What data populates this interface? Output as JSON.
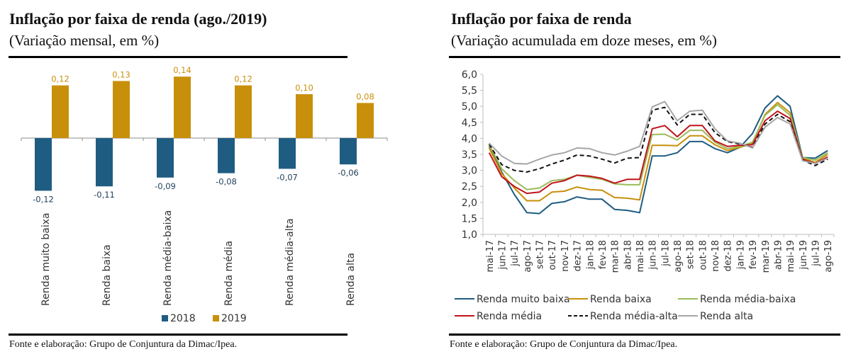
{
  "chart_data": [
    {
      "type": "bar",
      "title": "Inflação por faixa de renda (ago./2019)",
      "subtitle": "(Variação mensal, em %)",
      "xlabel": "",
      "ylabel": "",
      "categories": [
        "Renda muito baixa",
        "Renda baixa",
        "Renda média-baixa",
        "Renda média",
        "Renda média-alta",
        "Renda alta"
      ],
      "series": [
        {
          "name": "2018",
          "color": "#1f5c82",
          "values": [
            -0.12,
            -0.11,
            -0.09,
            -0.08,
            -0.07,
            -0.06
          ],
          "labels": [
            "-0,12",
            "-0,11",
            "-0,09",
            "-0,08",
            "-0,07",
            "-0,06"
          ]
        },
        {
          "name": "2019",
          "color": "#c8900a",
          "values": [
            0.12,
            0.13,
            0.14,
            0.12,
            0.1,
            0.08
          ],
          "labels": [
            "0,12",
            "0,13",
            "0,14",
            "0,12",
            "0,10",
            "0,08"
          ]
        }
      ],
      "ylim": [
        -0.2,
        0.2
      ],
      "grid": false,
      "legend": "bottom",
      "source": "Fonte e elaboração: Grupo de Conjuntura da Dimac/Ipea."
    },
    {
      "type": "line",
      "title": "Inflação por faixa de renda",
      "subtitle": "(Variação acumulada em doze meses, em %)",
      "xlabel": "",
      "ylabel": "",
      "x": [
        "mai-17",
        "jun-17",
        "jul-17",
        "ago-17",
        "set-17",
        "out-17",
        "nov-17",
        "dez-17",
        "jan-18",
        "fev-18",
        "mar-18",
        "abr-18",
        "mai-18",
        "jun-18",
        "jul-18",
        "ago-18",
        "set-18",
        "out-18",
        "nov-18",
        "dez-18",
        "jan-19",
        "fev-19",
        "mar-19",
        "abr-19",
        "mai-19",
        "jun-19",
        "jul-19",
        "ago-19"
      ],
      "ylim": [
        1.0,
        6.0
      ],
      "yticks": [
        "1,0",
        "1,5",
        "2,0",
        "2,5",
        "3,0",
        "3,5",
        "4,0",
        "4,5",
        "5,0",
        "5,5",
        "6,0"
      ],
      "grid": false,
      "legend": "bottom",
      "series": [
        {
          "name": "Renda muito baixa",
          "color": "#1f5c82",
          "dash": false,
          "values": [
            3.75,
            2.95,
            2.25,
            1.68,
            1.65,
            1.97,
            2.02,
            2.17,
            2.1,
            2.1,
            1.78,
            1.75,
            1.68,
            3.45,
            3.45,
            3.55,
            3.9,
            3.9,
            3.68,
            3.55,
            3.72,
            4.15,
            4.95,
            5.33,
            5.0,
            3.4,
            3.38,
            3.62
          ]
        },
        {
          "name": "Renda baixa",
          "color": "#c8900a",
          "dash": false,
          "values": [
            3.7,
            2.9,
            2.45,
            2.05,
            2.05,
            2.32,
            2.35,
            2.48,
            2.4,
            2.38,
            2.15,
            2.13,
            2.08,
            3.78,
            3.78,
            3.77,
            4.08,
            4.08,
            3.8,
            3.62,
            3.72,
            3.85,
            4.75,
            5.12,
            4.8,
            3.38,
            3.25,
            3.5
          ]
        },
        {
          "name": "Renda média-baixa",
          "color": "#9bbb59",
          "dash": false,
          "values": [
            3.8,
            3.05,
            2.68,
            2.4,
            2.45,
            2.68,
            2.72,
            2.85,
            2.78,
            2.72,
            2.58,
            2.55,
            2.55,
            4.12,
            4.13,
            3.95,
            4.25,
            4.25,
            3.88,
            3.68,
            3.75,
            3.88,
            4.72,
            5.05,
            4.72,
            3.4,
            3.32,
            3.55
          ]
        },
        {
          "name": "Renda média",
          "color": "#c0141c",
          "dash": false,
          "values": [
            3.55,
            2.8,
            2.5,
            2.28,
            2.32,
            2.6,
            2.68,
            2.85,
            2.82,
            2.75,
            2.6,
            2.72,
            2.72,
            4.3,
            4.4,
            4.05,
            4.4,
            4.4,
            3.92,
            3.75,
            3.78,
            3.8,
            4.55,
            4.85,
            4.62,
            3.35,
            3.22,
            3.42
          ]
        },
        {
          "name": "Renda média-alta",
          "color": "#111111",
          "dash": true,
          "values": [
            3.82,
            3.18,
            3.0,
            2.95,
            3.05,
            3.2,
            3.32,
            3.48,
            3.45,
            3.35,
            3.23,
            3.38,
            3.4,
            4.88,
            4.97,
            4.42,
            4.75,
            4.75,
            4.18,
            3.9,
            3.82,
            3.72,
            4.45,
            4.75,
            4.52,
            3.32,
            3.15,
            3.35
          ]
        },
        {
          "name": "Renda alta",
          "color": "#a6a6a6",
          "dash": false,
          "values": [
            3.85,
            3.45,
            3.22,
            3.2,
            3.35,
            3.48,
            3.55,
            3.7,
            3.68,
            3.55,
            3.48,
            3.6,
            3.75,
            4.98,
            5.15,
            4.55,
            4.85,
            4.88,
            4.3,
            3.92,
            3.85,
            3.7,
            4.35,
            4.65,
            4.45,
            3.3,
            3.22,
            3.38
          ]
        }
      ],
      "source": "Fonte e elaboração: Grupo de Conjuntura da Dimac/Ipea."
    }
  ]
}
